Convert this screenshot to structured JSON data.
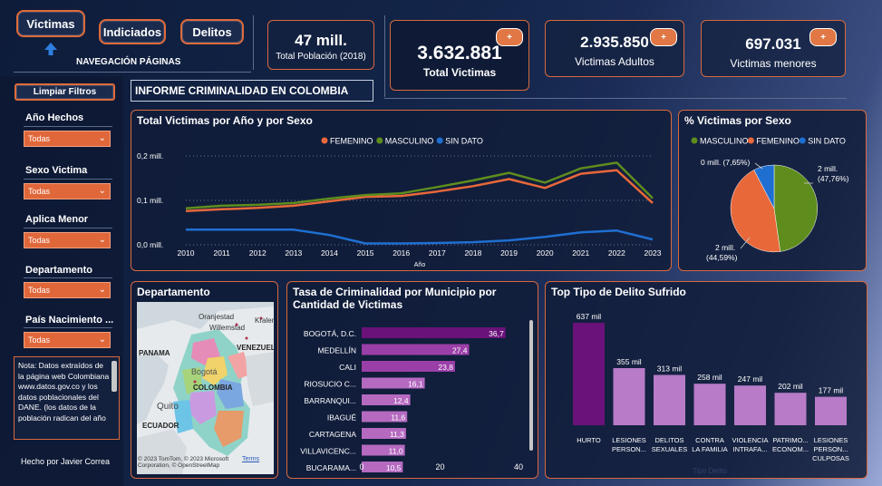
{
  "nav": {
    "victimas": "Victimas",
    "indiciados": "Indiciados",
    "delitos": "Delitos",
    "caption": "NAVEGACIÓN PÁGINAS"
  },
  "kpis": {
    "poblacion_val": "47 mill.",
    "poblacion_lbl": "Total Población (2018)",
    "total_val": "3.632.881",
    "total_lbl": "Total Victimas",
    "adultos_val": "2.935.850",
    "adultos_lbl": "Victimas Adultos",
    "menores_val": "697.031",
    "menores_lbl": "Victimas menores",
    "plus": "+"
  },
  "filters": {
    "clear": "Limpiar Filtros",
    "items": [
      {
        "label": "Año Hechos",
        "value": "Todas"
      },
      {
        "label": "Sexo Victima",
        "value": "Todas"
      },
      {
        "label": "Aplica Menor",
        "value": "Todas"
      },
      {
        "label": "Departamento",
        "value": "Todas"
      },
      {
        "label": "País Nacimiento ...",
        "value": "Todas"
      }
    ],
    "chevron": "⌄"
  },
  "note": {
    "text": "Nota: Datos extraídos de la página web Colombiana www.datos.gov.co y los datos poblacionales del DANE. (los datos de la población radican del año"
  },
  "author": "Hecho por Javier Correa",
  "report_title": "INFORME CRIMINALIDAD EN COLOMBIA",
  "line_panel": {
    "title": "Total Victimas por Año y por Sexo",
    "chart_data": {
      "type": "line",
      "xlabel": "Año",
      "ylabel": "",
      "x": [
        2010,
        2011,
        2012,
        2013,
        2014,
        2015,
        2016,
        2017,
        2018,
        2019,
        2020,
        2021,
        2022,
        2023
      ],
      "y_ticks": [
        "0,0 mill.",
        "0,1 mill.",
        "0,2 mill."
      ],
      "ylim": [
        0,
        0.2
      ],
      "grid": true,
      "legend": "top",
      "series": [
        {
          "name": "FEMENINO",
          "color": "#e8683a",
          "values": [
            0.076,
            0.08,
            0.083,
            0.088,
            0.098,
            0.108,
            0.11,
            0.12,
            0.132,
            0.148,
            0.128,
            0.16,
            0.168,
            0.094
          ]
        },
        {
          "name": "MASCULINO",
          "color": "#5e8d1e",
          "values": [
            0.082,
            0.088,
            0.09,
            0.094,
            0.104,
            0.112,
            0.116,
            0.13,
            0.145,
            0.162,
            0.14,
            0.172,
            0.185,
            0.105
          ]
        },
        {
          "name": "SIN DATO",
          "color": "#1f6fd1",
          "values": [
            0.034,
            0.034,
            0.034,
            0.034,
            0.022,
            0.003,
            0.003,
            0.004,
            0.006,
            0.01,
            0.018,
            0.028,
            0.032,
            0.012
          ]
        }
      ]
    }
  },
  "pie_panel": {
    "title": "% Victimas por Sexo",
    "chart_data": {
      "type": "pie",
      "legend": "top",
      "slices": [
        {
          "name": "MASCULINO",
          "color": "#5e8d1e",
          "pct": 47.76,
          "label1": "2 mill.",
          "label2": "(47,76%)"
        },
        {
          "name": "FEMENINO",
          "color": "#e8683a",
          "pct": 44.59,
          "label1": "2 mill.",
          "label2": "(44,59%)"
        },
        {
          "name": "SIN DATO",
          "color": "#1f6fd1",
          "pct": 7.65,
          "label1": "0 mill. (7,65%)",
          "label2": ""
        }
      ]
    }
  },
  "map_panel": {
    "title": "Departamento",
    "labels": {
      "oranjestad": "Oranjestad",
      "willemstad": "Willemstad",
      "kralen": "Kralen",
      "venezuela": "VENEZUELA",
      "panama": "PANAMA",
      "bogota": "Bogotá",
      "colombia": "COLOMBIA",
      "quito": "Quito",
      "ecuador": "ECUADOR"
    },
    "attribution": "© 2023 TomTom, © 2023 Microsoft Corporation, © OpenStreetMap",
    "terms": "Terms"
  },
  "municipio_panel": {
    "title1": "Tasa de Criminalidad por Municipio por",
    "title2": "Cantidad de Victimas",
    "chart_data": {
      "type": "bar",
      "orientation": "horizontal",
      "categories": [
        "BOGOTÁ, D.C.",
        "MEDELLÍN",
        "CALI",
        "RIOSUCIO C...",
        "BARRANQUI...",
        "IBAGUÉ",
        "CARTAGENA",
        "VILLAVICENC...",
        "BUCARAMA..."
      ],
      "values": [
        36.7,
        27.4,
        23.8,
        16.1,
        12.4,
        11.6,
        11.3,
        11.0,
        10.5
      ],
      "value_labels": [
        "36,7",
        "27,4",
        "23,8",
        "16,1",
        "12,4",
        "11,6",
        "11,3",
        "11,0",
        "10,5"
      ],
      "xlim": [
        0,
        40
      ],
      "x_ticks": [
        "0",
        "20",
        "40"
      ]
    }
  },
  "delito_panel": {
    "title": "Top Tipo de Delito Sufrido",
    "chart_data": {
      "type": "bar",
      "xlabel": "Tipo Delito",
      "categories": [
        [
          "HURTO"
        ],
        [
          "LESIONES",
          "PERSON..."
        ],
        [
          "DELITOS",
          "SEXUALES"
        ],
        [
          "CONTRA",
          "LA FAMILIA"
        ],
        [
          "VIOLENCIA",
          "INTRAFA..."
        ],
        [
          "PATRIMO...",
          "ECONOM..."
        ],
        [
          "LESIONES",
          "PERSON...",
          "CULPOSAS"
        ]
      ],
      "values": [
        637,
        355,
        313,
        258,
        247,
        202,
        177
      ],
      "value_labels": [
        "637 mil",
        "355 mil",
        "313 mil",
        "258 mil",
        "247 mil",
        "202 mil",
        "177 mil"
      ],
      "ylim": [
        0,
        637
      ]
    }
  }
}
